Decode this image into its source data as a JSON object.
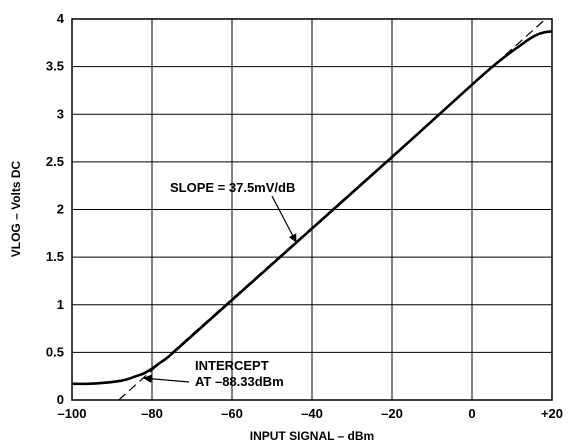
{
  "chart_data": {
    "type": "line",
    "xlabel": "INPUT SIGNAL – dBm",
    "ylabel": "VLOG – Volts DC",
    "xlim": [
      -100,
      20
    ],
    "ylim": [
      0,
      4
    ],
    "grid": true,
    "x_ticks": [
      -100,
      -80,
      -60,
      -40,
      -20,
      0,
      20
    ],
    "x_tick_labels": [
      "–100",
      "–80",
      "–60",
      "–40",
      "–20",
      "0",
      "+20"
    ],
    "y_ticks": [
      0,
      0.5,
      1,
      1.5,
      2,
      2.5,
      3,
      3.5,
      4
    ],
    "y_tick_labels": [
      "0",
      "0.5",
      "1",
      "1.5",
      "2",
      "2.5",
      "3",
      "3.5",
      "4"
    ],
    "series": [
      {
        "role": "measured",
        "x": [
          -100,
          -96,
          -92,
          -88,
          -86,
          -84,
          -82,
          -80,
          -78,
          -76,
          -72,
          -60,
          -40,
          -20,
          0,
          6,
          10,
          12,
          14,
          16,
          18,
          20
        ],
        "y": [
          0.17,
          0.17,
          0.18,
          0.2,
          0.22,
          0.25,
          0.28,
          0.33,
          0.39,
          0.45,
          0.6,
          1.05,
          1.8,
          2.55,
          3.31,
          3.53,
          3.66,
          3.72,
          3.78,
          3.83,
          3.86,
          3.87
        ]
      },
      {
        "role": "ideal-fit",
        "dashed": true,
        "x": [
          -88.33,
          20
        ],
        "y": [
          0,
          4.06
        ]
      }
    ],
    "annotations": [
      {
        "id": "slope",
        "text": "SLOPE = 37.5mV/dB",
        "arrow_to": [
          -44,
          1.66
        ]
      },
      {
        "id": "intercept",
        "lines": [
          "INTERCEPT",
          "AT –88.33dBm"
        ],
        "arrow_to": [
          -82,
          0.23
        ]
      }
    ]
  }
}
